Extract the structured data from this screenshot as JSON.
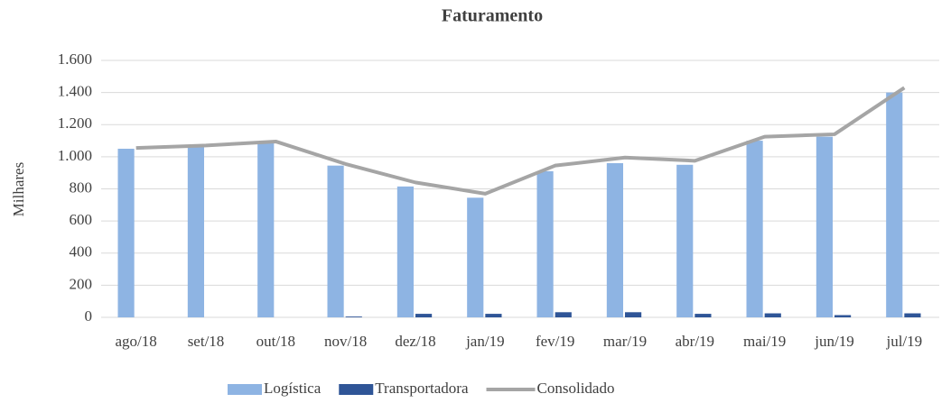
{
  "chart_data": {
    "type": "bar",
    "title": "Faturamento",
    "y_label": "Milhares",
    "categories": [
      "ago/18",
      "set/18",
      "out/18",
      "nov/18",
      "dez/18",
      "jan/19",
      "fev/19",
      "mar/19",
      "abr/19",
      "mai/19",
      "jun/19",
      "jul/19"
    ],
    "series": [
      {
        "name": "Logística",
        "type": "bar",
        "color": "#8eb4e3",
        "values": [
          1050,
          1065,
          1090,
          945,
          815,
          745,
          910,
          960,
          950,
          1100,
          1125,
          1400
        ]
      },
      {
        "name": "Transportadora",
        "type": "bar",
        "color": "#2f5597",
        "values": [
          0,
          0,
          0,
          5,
          22,
          22,
          32,
          32,
          22,
          25,
          14,
          25
        ]
      },
      {
        "name": "Consolidado",
        "type": "line",
        "color": "#a5a5a5",
        "values": [
          1055,
          1070,
          1095,
          955,
          840,
          770,
          945,
          995,
          975,
          1125,
          1140,
          1430
        ]
      }
    ],
    "ylim": [
      0,
      1600
    ],
    "yticks": [
      0,
      200,
      400,
      600,
      800,
      {
        "value": 1000,
        "label": "1.000"
      },
      {
        "value": 1200,
        "label": "1.200"
      },
      {
        "value": 1400,
        "label": "1.400"
      },
      {
        "value": 1600,
        "label": "1.600"
      }
    ],
    "grid": true,
    "legend": "bottom"
  }
}
